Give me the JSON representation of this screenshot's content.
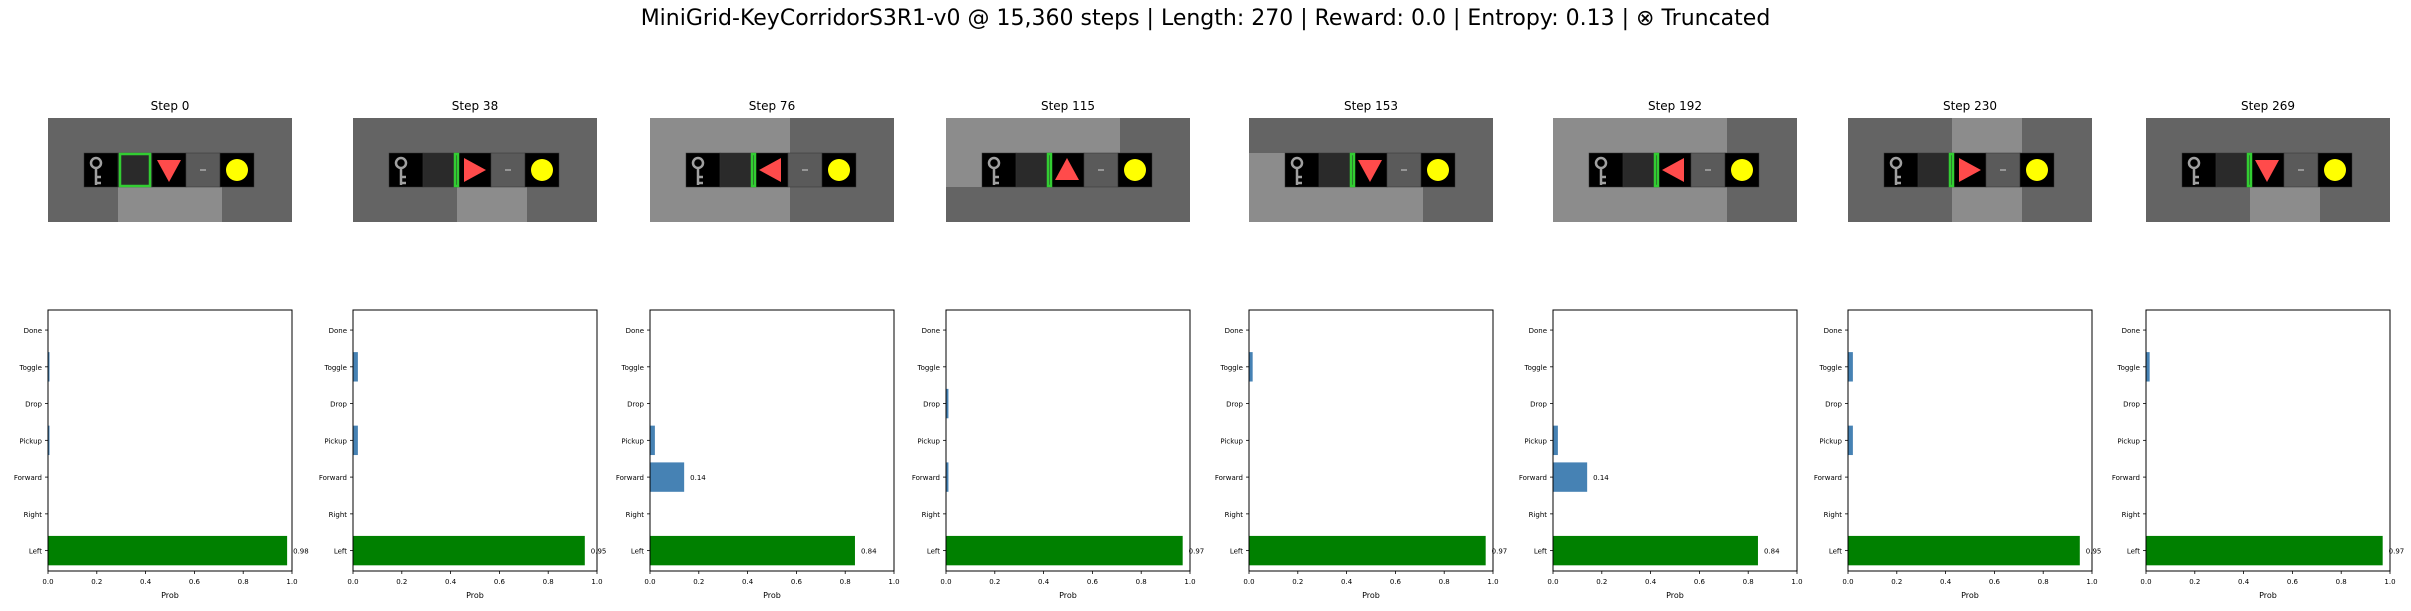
{
  "suptitle": "MiniGrid-KeyCorridorS3R1-v0 @ 15,360 steps | Length: 270 | Reward: 0.0 | Entropy: 0.13 | ⊗ Truncated",
  "chart_data": {
    "type": "bar",
    "orientation": "horizontal",
    "categories": [
      "Left",
      "Right",
      "Forward",
      "Pickup",
      "Drop",
      "Toggle",
      "Done"
    ],
    "xlabel": "Prob",
    "xlim": [
      0,
      1
    ],
    "xticks": [
      "0.0",
      "0.2",
      "0.4",
      "0.6",
      "0.8",
      "1.0"
    ],
    "colors": {
      "chosen": "#008000",
      "other": "#4682b4"
    },
    "panels": [
      {
        "title": "Step 0",
        "chosen": "Left",
        "values": [
          0.98,
          0.0,
          0.0,
          0.005,
          0.0,
          0.005,
          0.0
        ],
        "labels": [
          "0.98",
          "",
          "",
          "",
          "",
          "",
          ""
        ],
        "agent_dir": "down"
      },
      {
        "title": "Step 38",
        "chosen": "Left",
        "values": [
          0.95,
          0.0,
          0.0,
          0.02,
          0.0,
          0.02,
          0.0
        ],
        "labels": [
          "0.95",
          "",
          "",
          "",
          "",
          "",
          ""
        ],
        "agent_dir": "right"
      },
      {
        "title": "Step 76",
        "chosen": "Left",
        "values": [
          0.84,
          0.0,
          0.14,
          0.02,
          0.0,
          0.0,
          0.0
        ],
        "labels": [
          "0.84",
          "",
          "0.14",
          "",
          "",
          "",
          ""
        ],
        "agent_dir": "left"
      },
      {
        "title": "Step 115",
        "chosen": "Left",
        "values": [
          0.97,
          0.0,
          0.01,
          0.0,
          0.01,
          0.0,
          0.0
        ],
        "labels": [
          "0.97",
          "",
          "",
          "",
          "",
          "",
          ""
        ],
        "agent_dir": "up"
      },
      {
        "title": "Step 153",
        "chosen": "Left",
        "values": [
          0.97,
          0.0,
          0.0,
          0.0,
          0.0,
          0.015,
          0.0
        ],
        "labels": [
          "0.97",
          "",
          "",
          "",
          "",
          "",
          ""
        ],
        "agent_dir": "down"
      },
      {
        "title": "Step 192",
        "chosen": "Left",
        "values": [
          0.84,
          0.0,
          0.14,
          0.02,
          0.0,
          0.0,
          0.0
        ],
        "labels": [
          "0.84",
          "",
          "0.14",
          "",
          "",
          "",
          ""
        ],
        "agent_dir": "left"
      },
      {
        "title": "Step 230",
        "chosen": "Left",
        "values": [
          0.95,
          0.0,
          0.0,
          0.02,
          0.0,
          0.02,
          0.0
        ],
        "labels": [
          "0.95",
          "",
          "",
          "",
          "",
          "",
          ""
        ],
        "agent_dir": "right"
      },
      {
        "title": "Step 269",
        "chosen": "Left",
        "values": [
          0.97,
          0.0,
          0.0,
          0.0,
          0.0,
          0.015,
          0.0
        ],
        "labels": [
          "0.97",
          "",
          "",
          "",
          "",
          "",
          ""
        ],
        "agent_dir": "down"
      }
    ],
    "grid_colors": {
      "floor": "#646464",
      "lit": "#8c8c8c",
      "cell": "#000000",
      "key": "#a0a0a0",
      "agent": "#ff4b4b",
      "ball": "#ffff00",
      "frame": "#32cd32"
    }
  }
}
